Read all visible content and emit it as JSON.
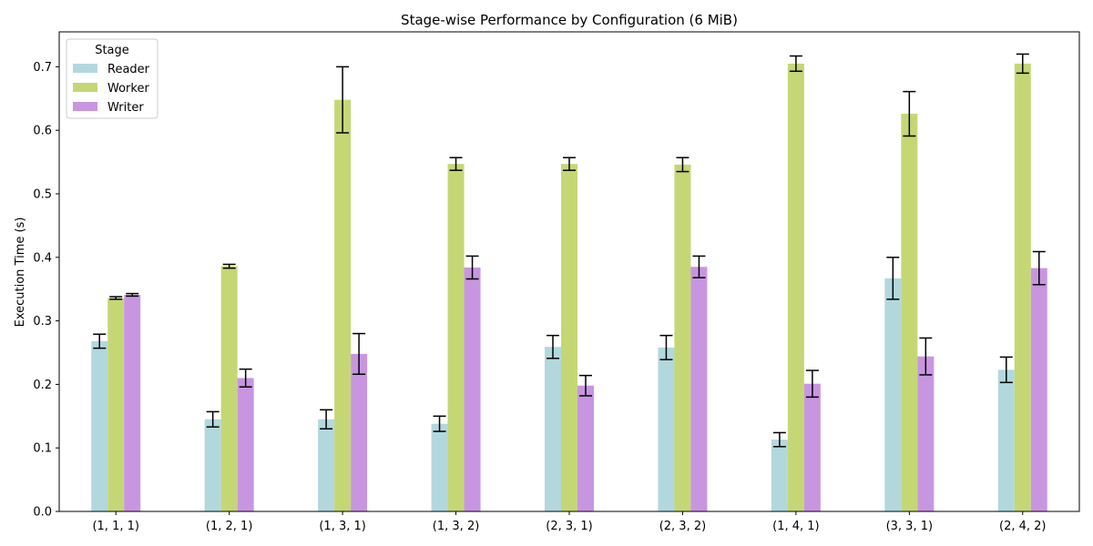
{
  "chart_data": {
    "type": "bar",
    "title": "Stage-wise Performance by Configuration (6 MiB)",
    "xlabel": "",
    "ylabel": "Execution Time (s)",
    "ylim": [
      0,
      0.755
    ],
    "yticks": [
      "0.0",
      "0.1",
      "0.2",
      "0.3",
      "0.4",
      "0.5",
      "0.6",
      "0.7"
    ],
    "grid": false,
    "legend": {
      "title": "Stage",
      "placement": "top-left"
    },
    "categories": [
      "(1, 1, 1)",
      "(1, 2, 1)",
      "(1, 3, 1)",
      "(1, 3, 2)",
      "(2, 3, 1)",
      "(2, 3, 2)",
      "(1, 4, 1)",
      "(3, 3, 1)",
      "(2, 4, 2)"
    ],
    "series": [
      {
        "name": "Reader",
        "color": "#b2d8de",
        "values": [
          0.268,
          0.145,
          0.145,
          0.138,
          0.259,
          0.258,
          0.113,
          0.367,
          0.223
        ],
        "errors": [
          0.011,
          0.012,
          0.015,
          0.012,
          0.018,
          0.019,
          0.011,
          0.033,
          0.02
        ]
      },
      {
        "name": "Worker",
        "color": "#c5d775",
        "values": [
          0.336,
          0.386,
          0.648,
          0.547,
          0.547,
          0.546,
          0.705,
          0.626,
          0.705
        ],
        "errors": [
          0.002,
          0.003,
          0.052,
          0.01,
          0.01,
          0.011,
          0.012,
          0.035,
          0.015
        ]
      },
      {
        "name": "Writer",
        "color": "#c896e0",
        "values": [
          0.341,
          0.21,
          0.248,
          0.384,
          0.198,
          0.385,
          0.201,
          0.244,
          0.383
        ],
        "errors": [
          0.002,
          0.014,
          0.032,
          0.018,
          0.016,
          0.017,
          0.021,
          0.029,
          0.026
        ]
      }
    ]
  }
}
